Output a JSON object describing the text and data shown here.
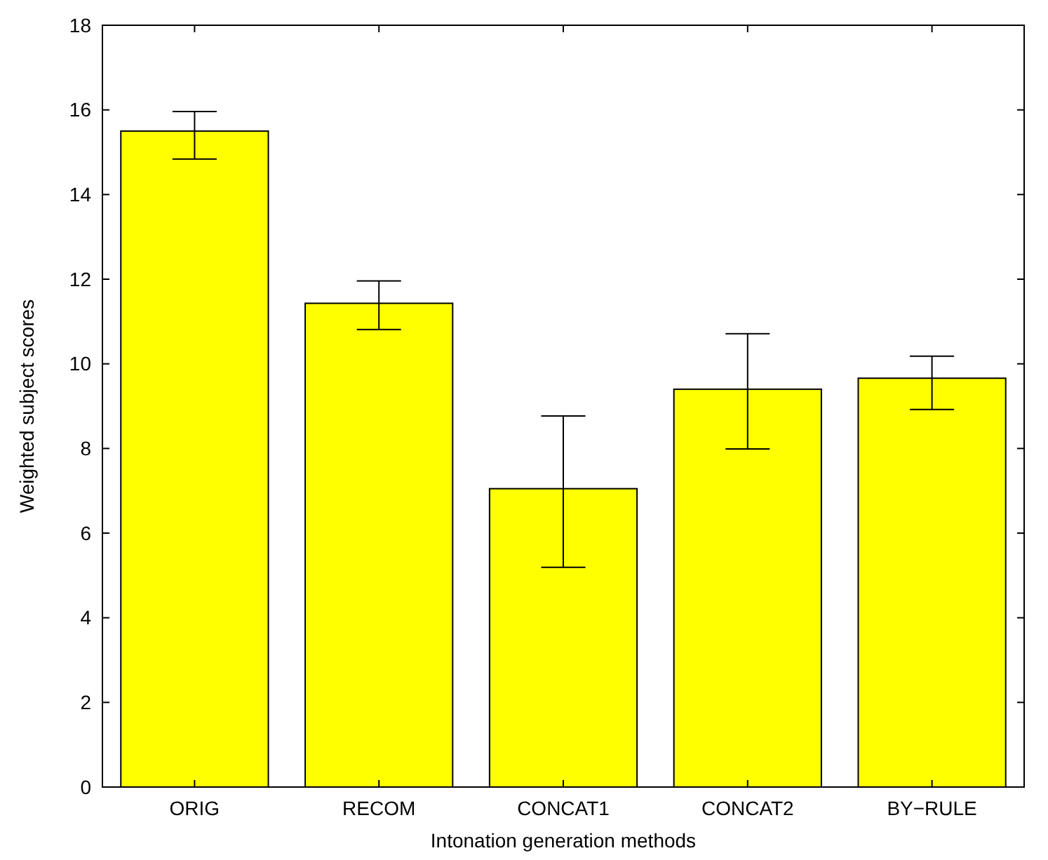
{
  "chart_data": {
    "type": "bar",
    "xlabel": "Intonation generation methods",
    "ylabel": "Weighted subject scores",
    "categories": [
      "ORIG",
      "RECOM",
      "CONCAT1",
      "CONCAT2",
      "BY−RULE"
    ],
    "values": [
      15.5,
      11.43,
      7.05,
      9.4,
      9.66
    ],
    "errors": [
      [
        14.84,
        15.96
      ],
      [
        10.81,
        11.96
      ],
      [
        5.19,
        8.77
      ],
      [
        7.99,
        10.71
      ],
      [
        8.92,
        10.18
      ]
    ],
    "color": "#ffff00",
    "ylim": [
      0,
      18
    ],
    "yticks": [
      0,
      2,
      4,
      6,
      8,
      10,
      12,
      14,
      16,
      18
    ],
    "grid": false
  }
}
